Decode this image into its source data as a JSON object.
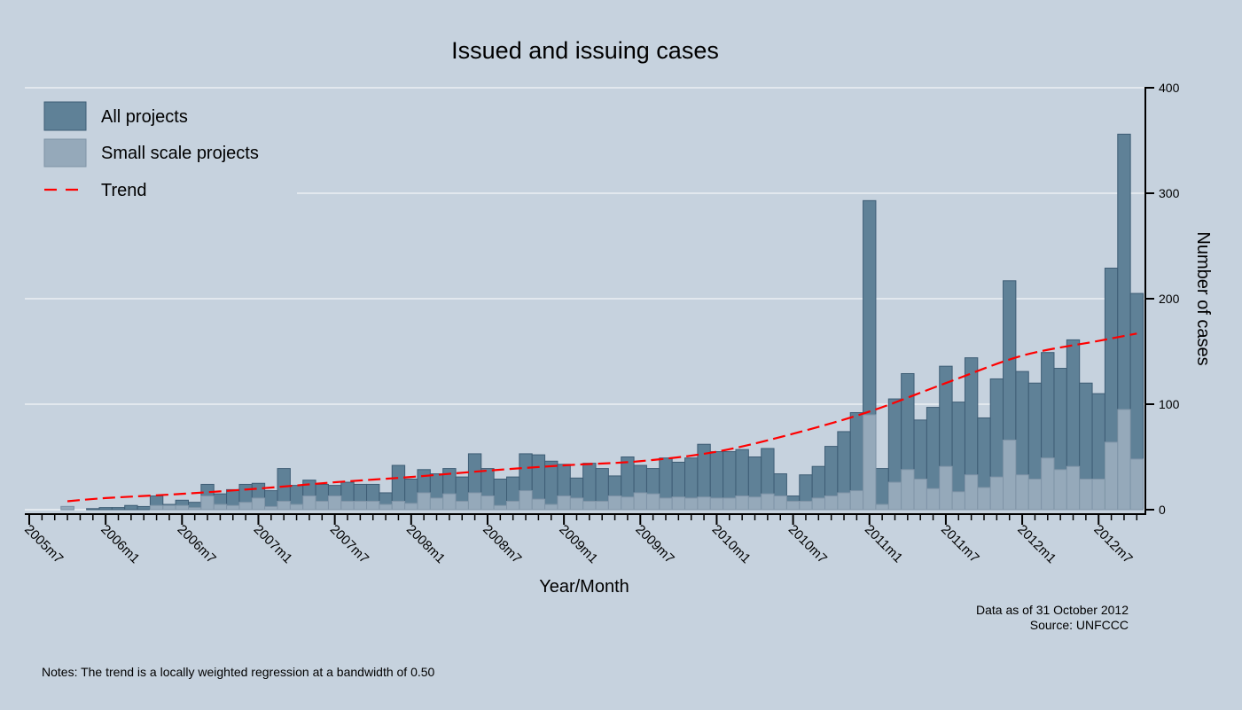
{
  "chart_data": {
    "type": "bar",
    "title": "Issued and issuing cases",
    "xlabel": "Year/Month",
    "ylabel": "Number of cases",
    "ylim": [
      0,
      400
    ],
    "yticks": [
      "0",
      "100",
      "200",
      "300",
      "400"
    ],
    "grid": true,
    "legend_position": "top-left",
    "xtick_labels": [
      "2005m7",
      "2006m1",
      "2006m7",
      "2007m1",
      "2007m7",
      "2008m1",
      "2008m7",
      "2009m1",
      "2009m7",
      "2010m1",
      "2010m7",
      "2011m1",
      "2011m7",
      "2012m1",
      "2012m7"
    ],
    "categories": [
      "2005m7",
      "2005m8",
      "2005m9",
      "2005m10",
      "2005m11",
      "2005m12",
      "2006m1",
      "2006m2",
      "2006m3",
      "2006m4",
      "2006m5",
      "2006m6",
      "2006m7",
      "2006m8",
      "2006m9",
      "2006m10",
      "2006m11",
      "2006m12",
      "2007m1",
      "2007m2",
      "2007m3",
      "2007m4",
      "2007m5",
      "2007m6",
      "2007m7",
      "2007m8",
      "2007m9",
      "2007m10",
      "2007m11",
      "2007m12",
      "2008m1",
      "2008m2",
      "2008m3",
      "2008m4",
      "2008m5",
      "2008m6",
      "2008m7",
      "2008m8",
      "2008m9",
      "2008m10",
      "2008m11",
      "2008m12",
      "2009m1",
      "2009m2",
      "2009m3",
      "2009m4",
      "2009m5",
      "2009m6",
      "2009m7",
      "2009m8",
      "2009m9",
      "2009m10",
      "2009m11",
      "2009m12",
      "2010m1",
      "2010m2",
      "2010m3",
      "2010m4",
      "2010m5",
      "2010m6",
      "2010m7",
      "2010m8",
      "2010m9",
      "2010m10",
      "2010m11",
      "2010m12",
      "2011m1",
      "2011m2",
      "2011m3",
      "2011m4",
      "2011m5",
      "2011m6",
      "2011m7",
      "2011m8",
      "2011m9",
      "2011m10",
      "2011m11",
      "2011m12",
      "2012m1",
      "2012m2",
      "2012m3",
      "2012m4",
      "2012m5",
      "2012m6",
      "2012m7",
      "2012m8",
      "2012m9",
      "2012m10"
    ],
    "series": [
      {
        "name": "All projects",
        "color": "#5f8197",
        "values": [
          0,
          0,
          0,
          3,
          0,
          1,
          2,
          2,
          4,
          3,
          13,
          5,
          9,
          7,
          24,
          15,
          19,
          24,
          25,
          18,
          39,
          23,
          28,
          24,
          23,
          26,
          24,
          24,
          16,
          42,
          29,
          38,
          34,
          39,
          31,
          53,
          39,
          29,
          31,
          53,
          52,
          46,
          43,
          30,
          44,
          39,
          32,
          50,
          42,
          39,
          49,
          45,
          49,
          62,
          55,
          55,
          57,
          50,
          58,
          34,
          13,
          33,
          41,
          60,
          74,
          92,
          293,
          39,
          105,
          129,
          85,
          97,
          136,
          102,
          144,
          87,
          124,
          217,
          131,
          120,
          149,
          134,
          161,
          120,
          110,
          229,
          356,
          205
        ]
      },
      {
        "name": "Small scale projects",
        "color": "#95a9ba",
        "values": [
          0,
          0,
          0,
          3,
          0,
          0,
          0,
          0,
          0,
          0,
          4,
          4,
          4,
          2,
          13,
          5,
          4,
          7,
          11,
          3,
          8,
          5,
          13,
          8,
          13,
          8,
          8,
          8,
          5,
          8,
          6,
          16,
          11,
          15,
          8,
          16,
          13,
          4,
          8,
          18,
          10,
          5,
          13,
          11,
          8,
          8,
          13,
          12,
          16,
          15,
          11,
          12,
          11,
          12,
          11,
          11,
          13,
          12,
          15,
          13,
          8,
          8,
          11,
          13,
          16,
          18,
          90,
          5,
          26,
          38,
          29,
          20,
          41,
          17,
          33,
          21,
          31,
          66,
          33,
          29,
          49,
          38,
          41,
          29,
          29,
          64,
          95,
          48
        ]
      },
      {
        "name": "Trend",
        "color": "#ff0000",
        "type": "line",
        "x": [
          "2005m10",
          "2006m1",
          "2006m7",
          "2007m1",
          "2007m7",
          "2008m1",
          "2008m7",
          "2009m1",
          "2009m7",
          "2010m1",
          "2010m7",
          "2011m1",
          "2011m7",
          "2012m1",
          "2012m7",
          "2012m10"
        ],
        "values": [
          8,
          11,
          15,
          20,
          26,
          31,
          37,
          42,
          46,
          55,
          72,
          93,
          120,
          146,
          160,
          167
        ]
      }
    ],
    "notes": "Notes: The trend is a locally weighted regression at a bandwidth of 0.50",
    "data_as_of": "Data as of 31 October 2012",
    "source": "Source: UNFCCC"
  }
}
